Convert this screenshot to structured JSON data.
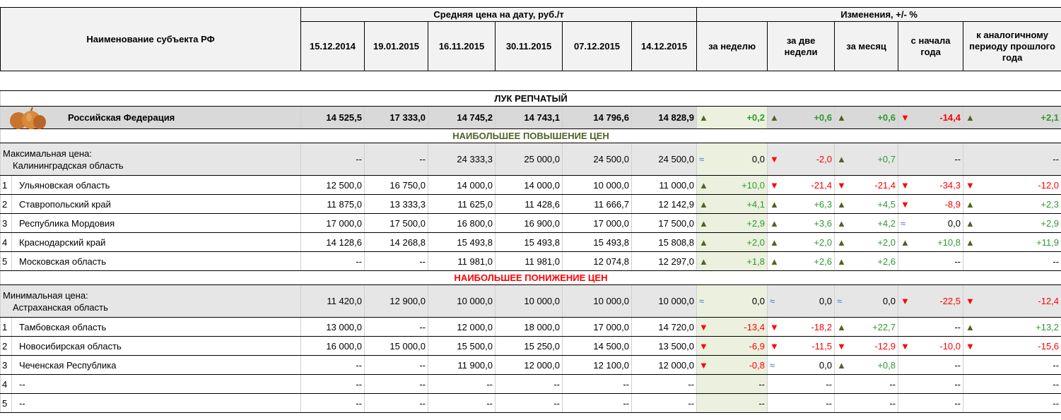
{
  "header": {
    "name_col": "Наименование субъекта РФ",
    "price_group": "Средняя цена на дату, руб./т",
    "dates": [
      "15.12.2014",
      "19.01.2015",
      "16.11.2015",
      "30.11.2015",
      "07.12.2015",
      "14.12.2015"
    ],
    "change_group": "Изменения, +/- %",
    "change_cols": [
      "за неделю",
      "за две недели",
      "за месяц",
      "с начала года",
      "к аналогичному периоду прошлого года"
    ]
  },
  "icon_colors": {
    "▲": "#4f6228",
    "▼": "#ff0000",
    "≈": "#4472c4"
  },
  "value_colors": {
    "▲": "#2e9a2e",
    "▼": "#ff0000",
    "≈": "#000000"
  },
  "section": "ЛУК РЕПЧАТЫЙ",
  "federation": {
    "name": "Российская Федерация",
    "prices": [
      "14 525,5",
      "17 333,0",
      "14 745,2",
      "14 743,1",
      "14 796,6",
      "14 828,9"
    ],
    "changes": [
      {
        "icon": "▲",
        "value": "+0,2"
      },
      {
        "icon": "▲",
        "value": "+0,6"
      },
      {
        "icon": "▲",
        "value": "+0,6"
      },
      {
        "icon": "▼",
        "value": "-14,4"
      },
      {
        "icon": "▲",
        "value": "+2,1"
      }
    ]
  },
  "groups": [
    {
      "title": "НАИБОЛЬШЕЕ ПОВЫШЕНИЕ ЦЕН",
      "color": "#4f6228",
      "extreme": {
        "label": "Максимальная цена:",
        "name": "Калининградская область",
        "prices": [
          "--",
          "--",
          "24 333,3",
          "25 000,0",
          "24 500,0",
          "24 500,0"
        ],
        "changes": [
          {
            "icon": "≈",
            "value": "0,0"
          },
          {
            "icon": "▼",
            "value": "-2,0"
          },
          {
            "icon": "▲",
            "value": "+0,7"
          },
          {
            "value": "--"
          },
          {
            "value": "--"
          }
        ]
      },
      "rows": [
        {
          "rank": "1",
          "name": "Ульяновская область",
          "prices": [
            "12 500,0",
            "16 750,0",
            "14 000,0",
            "14 000,0",
            "10 000,0",
            "11 000,0"
          ],
          "changes": [
            {
              "icon": "▲",
              "value": "+10,0"
            },
            {
              "icon": "▼",
              "value": "-21,4"
            },
            {
              "icon": "▼",
              "value": "-21,4"
            },
            {
              "icon": "▼",
              "value": "-34,3"
            },
            {
              "icon": "▼",
              "value": "-12,0"
            }
          ]
        },
        {
          "rank": "2",
          "name": "Ставропольский край",
          "prices": [
            "11 875,0",
            "13 333,3",
            "11 625,0",
            "11 428,6",
            "11 666,7",
            "12 142,9"
          ],
          "changes": [
            {
              "icon": "▲",
              "value": "+4,1"
            },
            {
              "icon": "▲",
              "value": "+6,3"
            },
            {
              "icon": "▲",
              "value": "+4,5"
            },
            {
              "icon": "▼",
              "value": "-8,9"
            },
            {
              "icon": "▲",
              "value": "+2,3"
            }
          ]
        },
        {
          "rank": "3",
          "name": "Республика Мордовия",
          "prices": [
            "17 000,0",
            "17 500,0",
            "16 800,0",
            "16 900,0",
            "17 000,0",
            "17 500,0"
          ],
          "changes": [
            {
              "icon": "▲",
              "value": "+2,9"
            },
            {
              "icon": "▲",
              "value": "+3,6"
            },
            {
              "icon": "▲",
              "value": "+4,2"
            },
            {
              "icon": "≈",
              "value": "0,0"
            },
            {
              "icon": "▲",
              "value": "+2,9"
            }
          ]
        },
        {
          "rank": "4",
          "name": "Краснодарский край",
          "prices": [
            "14 128,6",
            "14 268,8",
            "15 493,8",
            "15 493,8",
            "15 493,8",
            "15 808,8"
          ],
          "changes": [
            {
              "icon": "▲",
              "value": "+2,0"
            },
            {
              "icon": "▲",
              "value": "+2,0"
            },
            {
              "icon": "▲",
              "value": "+2,0"
            },
            {
              "icon": "▲",
              "value": "+10,8"
            },
            {
              "icon": "▲",
              "value": "+11,9"
            }
          ]
        },
        {
          "rank": "5",
          "name": "Московская область",
          "prices": [
            "--",
            "--",
            "11 981,0",
            "11 981,0",
            "12 074,8",
            "12 297,0"
          ],
          "changes": [
            {
              "icon": "▲",
              "value": "+1,8"
            },
            {
              "icon": "▲",
              "value": "+2,6"
            },
            {
              "icon": "▲",
              "value": "+2,6"
            },
            {
              "value": "--"
            },
            {
              "value": "--"
            }
          ]
        }
      ]
    },
    {
      "title": "НАИБОЛЬШЕЕ ПОНИЖЕНИЕ ЦЕН",
      "color": "#ff0000",
      "extreme": {
        "label": "Минимальная цена:",
        "name": "Астраханская область",
        "prices": [
          "11 420,0",
          "12 900,0",
          "10 000,0",
          "10 000,0",
          "10 000,0",
          "10 000,0"
        ],
        "changes": [
          {
            "icon": "≈",
            "value": "0,0"
          },
          {
            "icon": "≈",
            "value": "0,0"
          },
          {
            "icon": "≈",
            "value": "0,0"
          },
          {
            "icon": "▼",
            "value": "-22,5"
          },
          {
            "icon": "▼",
            "value": "-12,4"
          }
        ]
      },
      "rows": [
        {
          "rank": "1",
          "name": "Тамбовская область",
          "prices": [
            "13 000,0",
            "--",
            "12 000,0",
            "18 000,0",
            "17 000,0",
            "14 720,0"
          ],
          "changes": [
            {
              "icon": "▼",
              "value": "-13,4"
            },
            {
              "icon": "▼",
              "value": "-18,2"
            },
            {
              "icon": "▲",
              "value": "+22,7"
            },
            {
              "value": "--"
            },
            {
              "icon": "▲",
              "value": "+13,2"
            }
          ]
        },
        {
          "rank": "2",
          "name": "Новосибирская область",
          "prices": [
            "16 000,0",
            "15 000,0",
            "15 500,0",
            "15 250,0",
            "14 500,0",
            "13 500,0"
          ],
          "changes": [
            {
              "icon": "▼",
              "value": "-6,9"
            },
            {
              "icon": "▼",
              "value": "-11,5"
            },
            {
              "icon": "▼",
              "value": "-12,9"
            },
            {
              "icon": "▼",
              "value": "-10,0"
            },
            {
              "icon": "▼",
              "value": "-15,6"
            }
          ]
        },
        {
          "rank": "3",
          "name": "Чеченская Республика",
          "prices": [
            "--",
            "--",
            "11 900,0",
            "12 000,0",
            "12 100,0",
            "12 000,0"
          ],
          "changes": [
            {
              "icon": "▼",
              "value": "-0,8"
            },
            {
              "icon": "≈",
              "value": "0,0"
            },
            {
              "icon": "▲",
              "value": "+0,8"
            },
            {
              "value": "--"
            },
            {
              "value": "--"
            }
          ]
        },
        {
          "rank": "4",
          "name": "--",
          "prices": [
            "--",
            "--",
            "--",
            "--",
            "--",
            "--"
          ],
          "changes": [
            {
              "value": "--"
            },
            {
              "value": "--"
            },
            {
              "value": "--"
            },
            {
              "value": "--"
            },
            {
              "value": "--"
            }
          ]
        },
        {
          "rank": "5",
          "name": "--",
          "prices": [
            "--",
            "--",
            "--",
            "--",
            "--",
            "--"
          ],
          "changes": [
            {
              "value": "--"
            },
            {
              "value": "--"
            },
            {
              "value": "--"
            },
            {
              "value": "--"
            },
            {
              "value": "--"
            }
          ]
        }
      ]
    }
  ]
}
